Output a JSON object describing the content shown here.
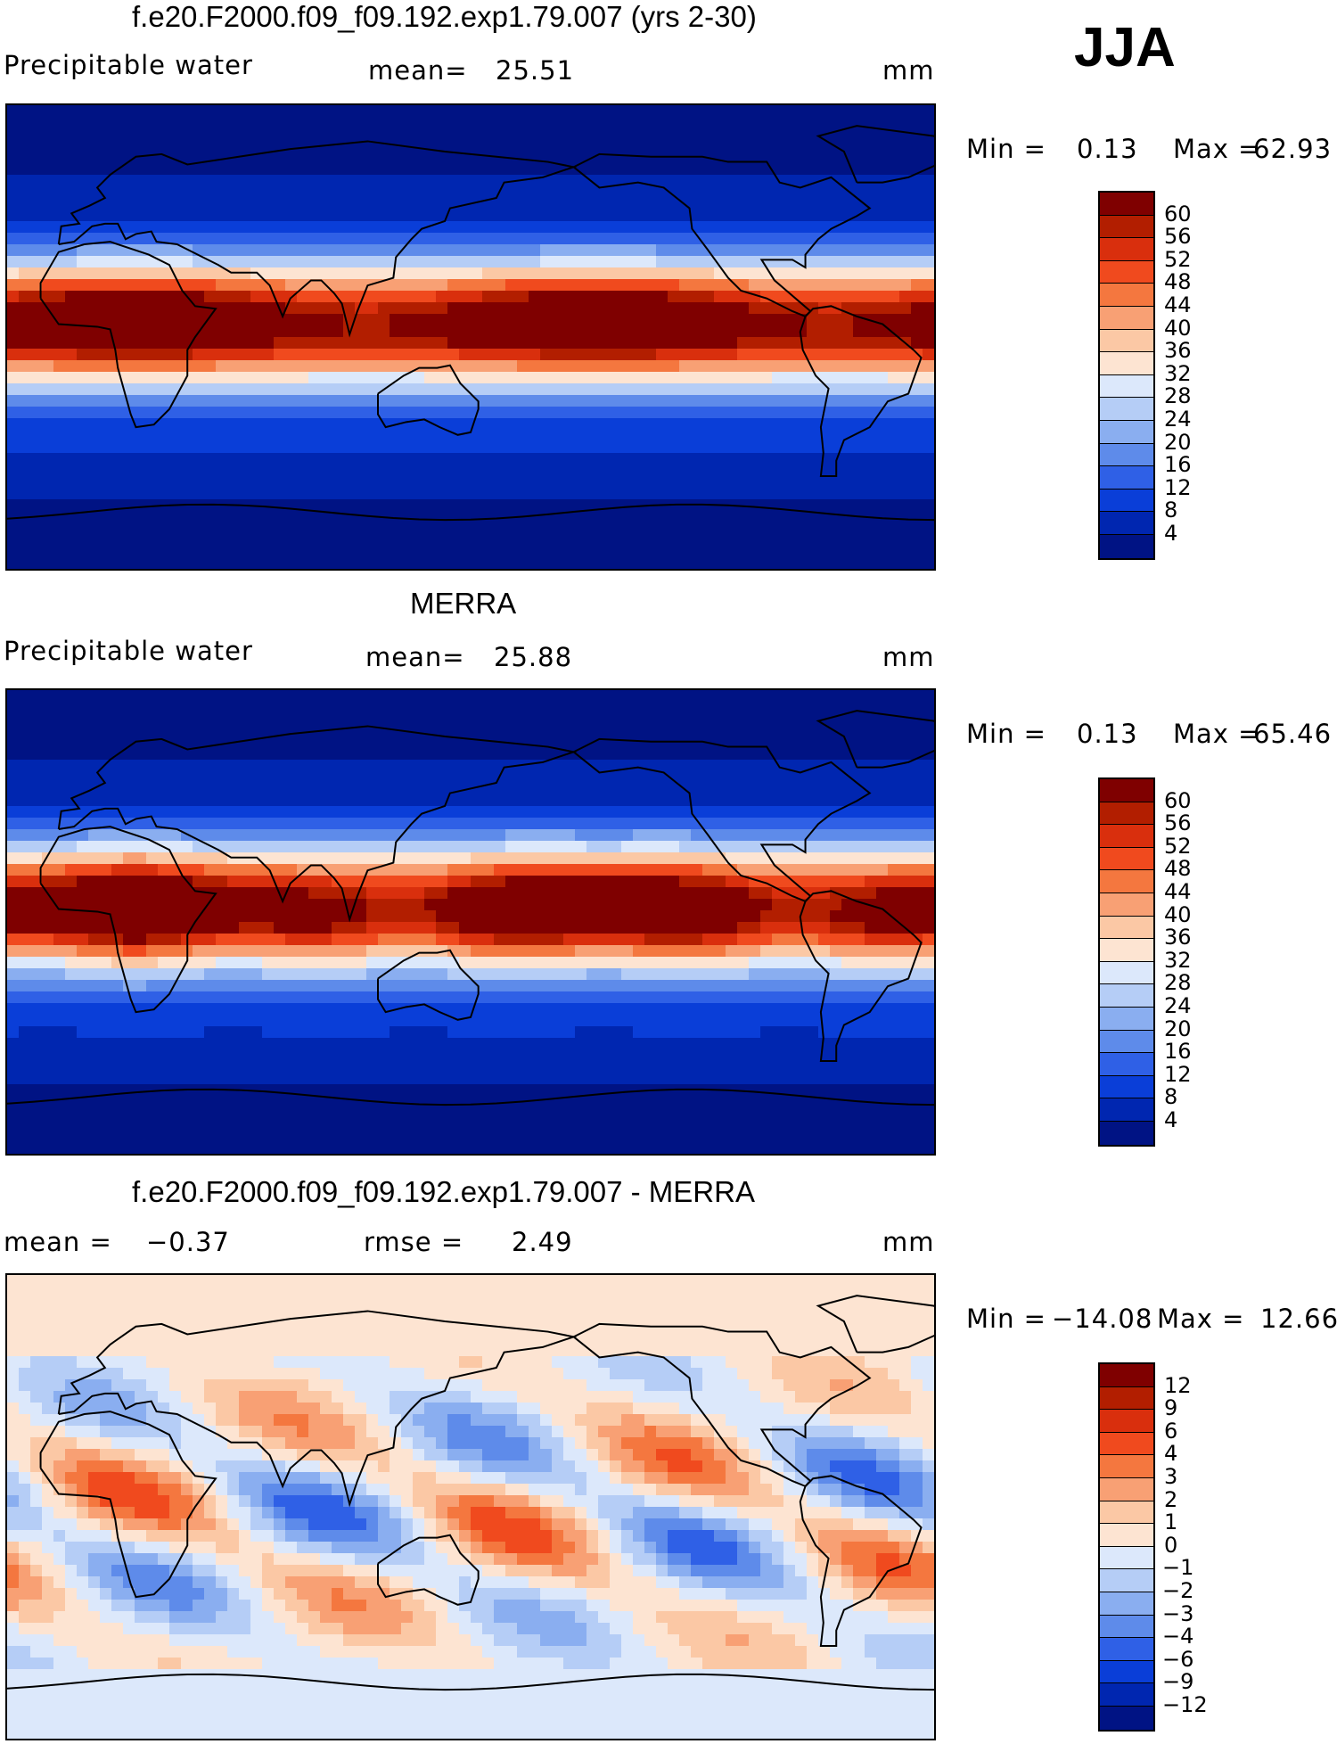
{
  "season": "JJA",
  "panels": [
    {
      "title": "f.e20.F2000.f09_f09.192.exp1.79.007 (yrs 2-30)",
      "left_label": "Precipitable water",
      "stat1": "mean=",
      "stat1_value": "25.51",
      "stat2": "",
      "stat2_value": "",
      "units": "mm",
      "min_label": "Min =",
      "min_value": "0.13",
      "max_label": "Max =",
      "max_value": "62.93",
      "field": "model",
      "colorbar": {
        "labels": [
          "60",
          "56",
          "52",
          "48",
          "44",
          "40",
          "36",
          "32",
          "28",
          "24",
          "20",
          "16",
          "12",
          "8",
          "4"
        ],
        "colors": [
          "#7f0000",
          "#b21e00",
          "#d92f0d",
          "#f04a1e",
          "#f4773f",
          "#f8a074",
          "#fbc8a5",
          "#fde4d2",
          "#dce8fb",
          "#b5cdf6",
          "#8aaef0",
          "#5e8bea",
          "#2f60e6",
          "#0a3ed8",
          "#0026b0",
          "#001384"
        ]
      }
    },
    {
      "title": "MERRA",
      "left_label": "Precipitable water",
      "stat1": "mean=",
      "stat1_value": "25.88",
      "stat2": "",
      "stat2_value": "",
      "units": "mm",
      "min_label": "Min =",
      "min_value": "0.13",
      "max_label": "Max =",
      "max_value": "65.46",
      "field": "obs",
      "colorbar": {
        "labels": [
          "60",
          "56",
          "52",
          "48",
          "44",
          "40",
          "36",
          "32",
          "28",
          "24",
          "20",
          "16",
          "12",
          "8",
          "4"
        ],
        "colors": [
          "#7f0000",
          "#b21e00",
          "#d92f0d",
          "#f04a1e",
          "#f4773f",
          "#f8a074",
          "#fbc8a5",
          "#fde4d2",
          "#dce8fb",
          "#b5cdf6",
          "#8aaef0",
          "#5e8bea",
          "#2f60e6",
          "#0a3ed8",
          "#0026b0",
          "#001384"
        ]
      }
    },
    {
      "title": "f.e20.F2000.f09_f09.192.exp1.79.007 - MERRA",
      "left_label": "mean =",
      "stat1": "",
      "stat1_value": "-0.37",
      "stat2": "rmse =",
      "stat2_value": "2.49",
      "units": "mm",
      "min_label": "Min =",
      "min_value": "-14.08",
      "max_label": "Max =",
      "max_value": "12.66",
      "field": "diff",
      "colorbar": {
        "labels": [
          "12",
          "9",
          "6",
          "4",
          "3",
          "2",
          "1",
          "0",
          "-1",
          "-2",
          "-3",
          "-4",
          "-6",
          "-9",
          "-12"
        ],
        "colors": [
          "#7f0000",
          "#b21e00",
          "#d92f0d",
          "#f04a1e",
          "#f4773f",
          "#f8a074",
          "#fbc8a5",
          "#fde4d2",
          "#dce8fb",
          "#b5cdf6",
          "#8aaef0",
          "#5e8bea",
          "#2f60e6",
          "#0a3ed8",
          "#0026b0",
          "#001384"
        ]
      }
    }
  ]
}
